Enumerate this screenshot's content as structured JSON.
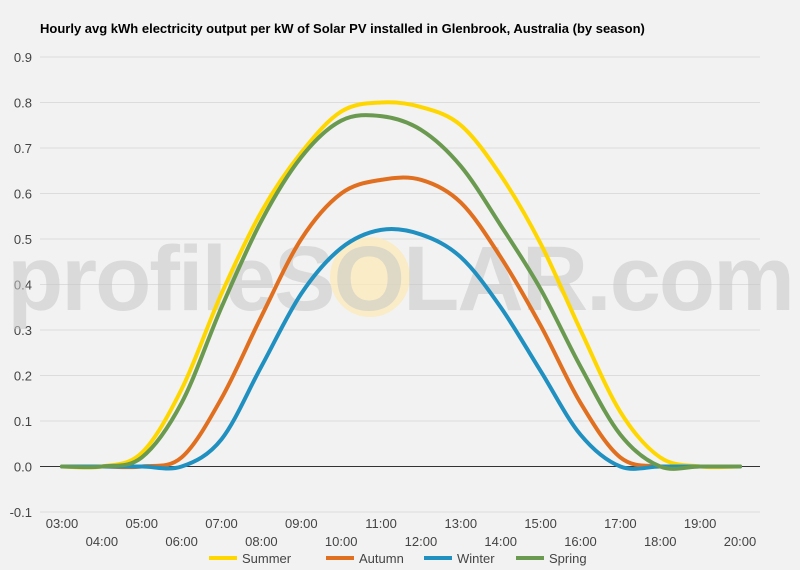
{
  "chart_data": {
    "type": "line",
    "title": "Hourly avg kWh electricity output per kW of Solar PV installed in Glenbrook, Australia (by season)",
    "watermark": "profileSOLAR.com",
    "xlabel": "",
    "ylabel": "",
    "ylim": [
      -0.1,
      0.9
    ],
    "yticks": [
      "-0.1",
      "0.0",
      "0.1",
      "0.2",
      "0.3",
      "0.4",
      "0.5",
      "0.6",
      "0.7",
      "0.8",
      "0.9"
    ],
    "categories": [
      "03:00",
      "04:00",
      "05:00",
      "06:00",
      "07:00",
      "08:00",
      "09:00",
      "10:00",
      "11:00",
      "12:00",
      "13:00",
      "14:00",
      "15:00",
      "16:00",
      "17:00",
      "18:00",
      "19:00",
      "20:00"
    ],
    "grid": true,
    "legend_position": "bottom",
    "series": [
      {
        "name": "Summer",
        "color": "#ffd700",
        "values": [
          0,
          0,
          0.03,
          0.17,
          0.38,
          0.56,
          0.69,
          0.78,
          0.8,
          0.79,
          0.75,
          0.64,
          0.49,
          0.3,
          0.12,
          0.02,
          0,
          0
        ]
      },
      {
        "name": "Autumn",
        "color": "#e07020",
        "values": [
          0,
          0,
          0,
          0.02,
          0.15,
          0.33,
          0.5,
          0.6,
          0.63,
          0.63,
          0.58,
          0.46,
          0.31,
          0.14,
          0.02,
          0,
          0,
          0
        ]
      },
      {
        "name": "Winter",
        "color": "#2090c0",
        "values": [
          0,
          0,
          0,
          0,
          0.06,
          0.22,
          0.38,
          0.48,
          0.52,
          0.51,
          0.46,
          0.35,
          0.21,
          0.07,
          0,
          0,
          0,
          0
        ]
      },
      {
        "name": "Spring",
        "color": "#6a9a50",
        "values": [
          0,
          0,
          0.02,
          0.14,
          0.35,
          0.54,
          0.68,
          0.76,
          0.77,
          0.74,
          0.66,
          0.53,
          0.39,
          0.22,
          0.07,
          0,
          0,
          0
        ]
      }
    ]
  }
}
